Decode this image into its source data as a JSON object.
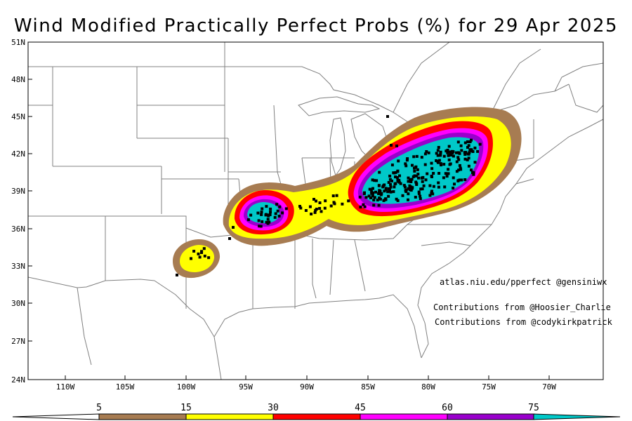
{
  "title": "Wind Modified Practically Perfect Probs (%) for 29 Apr 2025",
  "credits": {
    "site": "atlas.niu.edu/pperfect @gensiniwx",
    "contrib1": "Contributions from @Hoosier_Charlie",
    "contrib2": "Contributions from @codykirkpatrick"
  },
  "lat_ticks": [
    "51N",
    "48N",
    "45N",
    "42N",
    "39N",
    "36N",
    "33N",
    "30N",
    "27N",
    "24N"
  ],
  "lon_ticks": [
    "110W",
    "105W",
    "100W",
    "95W",
    "90W",
    "85W",
    "80W",
    "75W",
    "70W"
  ],
  "colorbar": {
    "labels": [
      "5",
      "15",
      "30",
      "45",
      "60",
      "75"
    ],
    "colors": [
      "#a77c52",
      "#ffff00",
      "#ff0000",
      "#ff00ff",
      "#9900cc",
      "#00c8c8"
    ]
  },
  "colors": {
    "land_bg": "#ffffff",
    "borders": "#808080",
    "report_marker": "#000000"
  }
}
